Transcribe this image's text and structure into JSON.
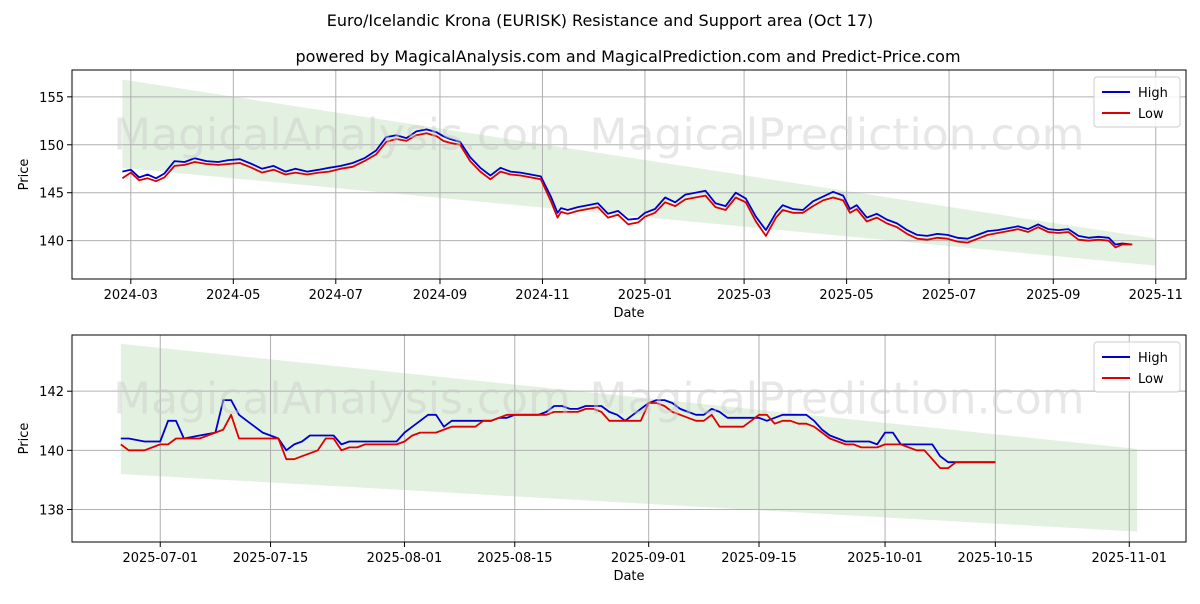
{
  "title_line1": "Euro/Icelandic Krona (EURISK) Resistance and Support area (Oct 17)",
  "title_line2": "powered by MagicalAnalysis.com and MagicalPrediction.com and Predict-Price.com",
  "watermarks": [
    "MagicalAnalysis.com",
    "MagicalPrediction.com"
  ],
  "colors": {
    "high": "#0000cc",
    "low": "#dd0000",
    "band": "#d8ecd6",
    "grid": "#b0b0b0"
  },
  "chart_data": [
    {
      "type": "line",
      "xlabel": "Date",
      "ylabel": "Price",
      "ylim": [
        136.0,
        157.8
      ],
      "yticks": [
        140,
        145,
        150,
        155
      ],
      "xticks": [
        {
          "label": "2024-03",
          "t": 0
        },
        {
          "label": "2024-05",
          "t": 61
        },
        {
          "label": "2024-07",
          "t": 122
        },
        {
          "label": "2024-09",
          "t": 184
        },
        {
          "label": "2024-11",
          "t": 245
        },
        {
          "label": "2025-01",
          "t": 306
        },
        {
          "label": "2025-03",
          "t": 365
        },
        {
          "label": "2025-05",
          "t": 426
        },
        {
          "label": "2025-07",
          "t": 487
        },
        {
          "label": "2025-09",
          "t": 549
        },
        {
          "label": "2025-11",
          "t": 610
        }
      ],
      "xlim": [
        -35,
        628
      ],
      "legend": [
        "High",
        "Low"
      ],
      "legend_position": "top-right",
      "grid": true,
      "band": {
        "x": [
          -5,
          610
        ],
        "upper": [
          156.8,
          140.2
        ],
        "lower": [
          147.6,
          137.4
        ]
      },
      "series": [
        {
          "name": "High",
          "x": [
            -5,
            0,
            5,
            10,
            15,
            20,
            26,
            32,
            38,
            45,
            52,
            58,
            65,
            72,
            78,
            85,
            92,
            98,
            105,
            112,
            118,
            125,
            132,
            139,
            146,
            152,
            158,
            164,
            170,
            176,
            182,
            186,
            190,
            196,
            202,
            208,
            214,
            220,
            226,
            232,
            238,
            244,
            250,
            254,
            256,
            260,
            266,
            272,
            278,
            284,
            290,
            296,
            302,
            306,
            312,
            318,
            324,
            330,
            336,
            342,
            348,
            354,
            360,
            366,
            372,
            378,
            384,
            388,
            394,
            400,
            406,
            412,
            418,
            424,
            428,
            432,
            438,
            444,
            450,
            456,
            462,
            468,
            474,
            480,
            486,
            492,
            498,
            504,
            510,
            516,
            522,
            528,
            534,
            540,
            546,
            552,
            558,
            564,
            570,
            576,
            582,
            586,
            590,
            596
          ],
          "values": [
            147.2,
            147.4,
            146.6,
            146.9,
            146.5,
            147.0,
            148.3,
            148.2,
            148.6,
            148.3,
            148.2,
            148.4,
            148.5,
            148.0,
            147.5,
            147.8,
            147.2,
            147.5,
            147.2,
            147.4,
            147.6,
            147.8,
            148.1,
            148.6,
            149.4,
            150.8,
            151.0,
            150.7,
            151.4,
            151.6,
            151.3,
            150.9,
            150.6,
            150.3,
            148.7,
            147.6,
            146.8,
            147.6,
            147.2,
            147.1,
            146.9,
            146.7,
            144.6,
            142.9,
            143.4,
            143.2,
            143.5,
            143.7,
            143.9,
            142.8,
            143.1,
            142.2,
            142.3,
            142.9,
            143.3,
            144.5,
            144.0,
            144.8,
            145.0,
            145.2,
            143.9,
            143.6,
            145.0,
            144.4,
            142.5,
            141.1,
            142.9,
            143.7,
            143.3,
            143.2,
            144.1,
            144.6,
            145.1,
            144.7,
            143.3,
            143.7,
            142.4,
            142.8,
            142.2,
            141.8,
            141.1,
            140.6,
            140.5,
            140.7,
            140.6,
            140.3,
            140.2,
            140.6,
            141.0,
            141.1,
            141.3,
            141.5,
            141.2,
            141.7,
            141.2,
            141.1,
            141.2,
            140.5,
            140.3,
            140.4,
            140.3,
            139.6,
            139.7,
            139.6
          ]
        },
        {
          "name": "Low",
          "x": [
            -5,
            0,
            5,
            10,
            15,
            20,
            26,
            32,
            38,
            45,
            52,
            58,
            65,
            72,
            78,
            85,
            92,
            98,
            105,
            112,
            118,
            125,
            132,
            139,
            146,
            152,
            158,
            164,
            170,
            176,
            182,
            186,
            190,
            196,
            202,
            208,
            214,
            220,
            226,
            232,
            238,
            244,
            250,
            254,
            256,
            260,
            266,
            272,
            278,
            284,
            290,
            296,
            302,
            306,
            312,
            318,
            324,
            330,
            336,
            342,
            348,
            354,
            360,
            366,
            372,
            378,
            384,
            388,
            394,
            400,
            406,
            412,
            418,
            424,
            428,
            432,
            438,
            444,
            450,
            456,
            462,
            468,
            474,
            480,
            486,
            492,
            498,
            504,
            510,
            516,
            522,
            528,
            534,
            540,
            546,
            552,
            558,
            564,
            570,
            576,
            582,
            586,
            590,
            596
          ],
          "values": [
            146.5,
            147.1,
            146.3,
            146.5,
            146.2,
            146.6,
            147.8,
            147.9,
            148.2,
            148.0,
            147.9,
            148.0,
            148.1,
            147.6,
            147.1,
            147.4,
            146.9,
            147.1,
            146.9,
            147.1,
            147.2,
            147.5,
            147.7,
            148.3,
            149.0,
            150.3,
            150.6,
            150.4,
            151.0,
            151.2,
            150.9,
            150.4,
            150.2,
            150.0,
            148.3,
            147.2,
            146.4,
            147.2,
            146.9,
            146.8,
            146.6,
            146.4,
            144.1,
            142.4,
            143.0,
            142.8,
            143.1,
            143.3,
            143.5,
            142.4,
            142.7,
            141.7,
            141.9,
            142.5,
            142.9,
            144.0,
            143.6,
            144.3,
            144.5,
            144.7,
            143.5,
            143.2,
            144.5,
            144.0,
            142.0,
            140.5,
            142.4,
            143.2,
            142.9,
            142.9,
            143.6,
            144.2,
            144.5,
            144.2,
            142.9,
            143.3,
            142.0,
            142.4,
            141.8,
            141.4,
            140.7,
            140.2,
            140.1,
            140.3,
            140.2,
            139.9,
            139.8,
            140.2,
            140.6,
            140.8,
            141.0,
            141.2,
            140.9,
            141.4,
            140.9,
            140.8,
            140.9,
            140.1,
            140.0,
            140.1,
            140.0,
            139.3,
            139.6,
            139.6
          ]
        }
      ]
    },
    {
      "type": "line",
      "xlabel": "Date",
      "ylabel": "Price",
      "ylim": [
        136.9,
        143.9
      ],
      "yticks": [
        138,
        140,
        142
      ],
      "xticks": [
        {
          "label": "2025-07-01",
          "t": 0
        },
        {
          "label": "2025-07-15",
          "t": 14
        },
        {
          "label": "2025-08-01",
          "t": 31
        },
        {
          "label": "2025-08-15",
          "t": 45
        },
        {
          "label": "2025-09-01",
          "t": 62
        },
        {
          "label": "2025-09-15",
          "t": 76
        },
        {
          "label": "2025-10-01",
          "t": 92
        },
        {
          "label": "2025-10-15",
          "t": 106
        },
        {
          "label": "2025-11-01",
          "t": 123
        }
      ],
      "xlim": [
        -11.2,
        130.2
      ],
      "legend": [
        "High",
        "Low"
      ],
      "legend_position": "top-right",
      "grid": true,
      "band": {
        "x": [
          -5,
          124
        ],
        "upper": [
          143.6,
          140.05
        ],
        "lower": [
          139.2,
          137.25
        ]
      },
      "series": [
        {
          "name": "High",
          "x": [
            -5,
            -4,
            -2,
            0,
            1,
            2,
            3,
            5,
            7,
            8,
            9,
            10,
            11,
            12,
            13,
            14,
            15,
            16,
            17,
            18,
            19,
            20,
            21,
            22,
            23,
            24,
            25,
            26,
            27,
            28,
            29,
            30,
            31,
            32,
            33,
            34,
            35,
            36,
            37,
            38,
            39,
            40,
            41,
            42,
            43,
            44,
            45,
            46,
            47,
            48,
            49,
            50,
            51,
            52,
            53,
            54,
            55,
            56,
            57,
            58,
            59,
            60,
            61,
            62,
            63,
            64,
            65,
            66,
            67,
            68,
            69,
            70,
            71,
            72,
            73,
            74,
            75,
            76,
            77,
            78,
            79,
            80,
            81,
            82,
            83,
            84,
            85,
            86,
            87,
            88,
            89,
            90,
            91,
            92,
            93,
            94,
            95,
            96,
            97,
            98,
            99,
            100,
            101,
            102,
            103,
            104,
            105,
            106
          ],
          "values": [
            140.4,
            140.4,
            140.3,
            140.3,
            141.0,
            141.0,
            140.4,
            140.5,
            140.6,
            141.7,
            141.7,
            141.2,
            141.0,
            140.8,
            140.6,
            140.5,
            140.4,
            140.0,
            140.2,
            140.3,
            140.5,
            140.5,
            140.5,
            140.5,
            140.2,
            140.3,
            140.3,
            140.3,
            140.3,
            140.3,
            140.3,
            140.3,
            140.6,
            140.8,
            141.0,
            141.2,
            141.2,
            140.8,
            141.0,
            141.0,
            141.0,
            141.0,
            141.0,
            141.0,
            141.1,
            141.1,
            141.2,
            141.2,
            141.2,
            141.2,
            141.3,
            141.5,
            141.5,
            141.4,
            141.4,
            141.5,
            141.5,
            141.5,
            141.3,
            141.2,
            141.0,
            141.2,
            141.4,
            141.6,
            141.7,
            141.7,
            141.6,
            141.4,
            141.3,
            141.2,
            141.2,
            141.4,
            141.3,
            141.1,
            141.1,
            141.1,
            141.1,
            141.1,
            141.0,
            141.1,
            141.2,
            141.2,
            141.2,
            141.2,
            141.0,
            140.7,
            140.5,
            140.4,
            140.3,
            140.3,
            140.3,
            140.3,
            140.2,
            140.6,
            140.6,
            140.2,
            140.2,
            140.2,
            140.2,
            140.2,
            139.8,
            139.6,
            139.6,
            139.6,
            139.6,
            139.6,
            139.6,
            139.6
          ]
        },
        {
          "name": "Low",
          "x": [
            -5,
            -4,
            -2,
            0,
            1,
            2,
            3,
            5,
            7,
            8,
            9,
            10,
            11,
            12,
            13,
            14,
            15,
            16,
            17,
            18,
            19,
            20,
            21,
            22,
            23,
            24,
            25,
            26,
            27,
            28,
            29,
            30,
            31,
            32,
            33,
            34,
            35,
            36,
            37,
            38,
            39,
            40,
            41,
            42,
            43,
            44,
            45,
            46,
            47,
            48,
            49,
            50,
            51,
            52,
            53,
            54,
            55,
            56,
            57,
            58,
            59,
            60,
            61,
            62,
            63,
            64,
            65,
            66,
            67,
            68,
            69,
            70,
            71,
            72,
            73,
            74,
            75,
            76,
            77,
            78,
            79,
            80,
            81,
            82,
            83,
            84,
            85,
            86,
            87,
            88,
            89,
            90,
            91,
            92,
            93,
            94,
            95,
            96,
            97,
            98,
            99,
            100,
            101,
            102,
            103,
            104,
            105,
            106
          ],
          "values": [
            140.2,
            140.0,
            140.0,
            140.2,
            140.2,
            140.4,
            140.4,
            140.4,
            140.6,
            140.7,
            141.2,
            140.4,
            140.4,
            140.4,
            140.4,
            140.4,
            140.4,
            139.7,
            139.7,
            139.8,
            139.9,
            140.0,
            140.4,
            140.4,
            140.0,
            140.1,
            140.1,
            140.2,
            140.2,
            140.2,
            140.2,
            140.2,
            140.3,
            140.5,
            140.6,
            140.6,
            140.6,
            140.7,
            140.8,
            140.8,
            140.8,
            140.8,
            141.0,
            141.0,
            141.1,
            141.2,
            141.2,
            141.2,
            141.2,
            141.2,
            141.2,
            141.3,
            141.3,
            141.3,
            141.3,
            141.4,
            141.4,
            141.3,
            141.0,
            141.0,
            141.0,
            141.0,
            141.0,
            141.6,
            141.6,
            141.5,
            141.3,
            141.2,
            141.1,
            141.0,
            141.0,
            141.2,
            140.8,
            140.8,
            140.8,
            140.8,
            141.0,
            141.2,
            141.2,
            140.9,
            141.0,
            141.0,
            140.9,
            140.9,
            140.8,
            140.6,
            140.4,
            140.3,
            140.2,
            140.2,
            140.1,
            140.1,
            140.1,
            140.2,
            140.2,
            140.2,
            140.1,
            140.0,
            140.0,
            139.7,
            139.4,
            139.4,
            139.6,
            139.6,
            139.6,
            139.6,
            139.6,
            139.6
          ]
        }
      ]
    }
  ]
}
